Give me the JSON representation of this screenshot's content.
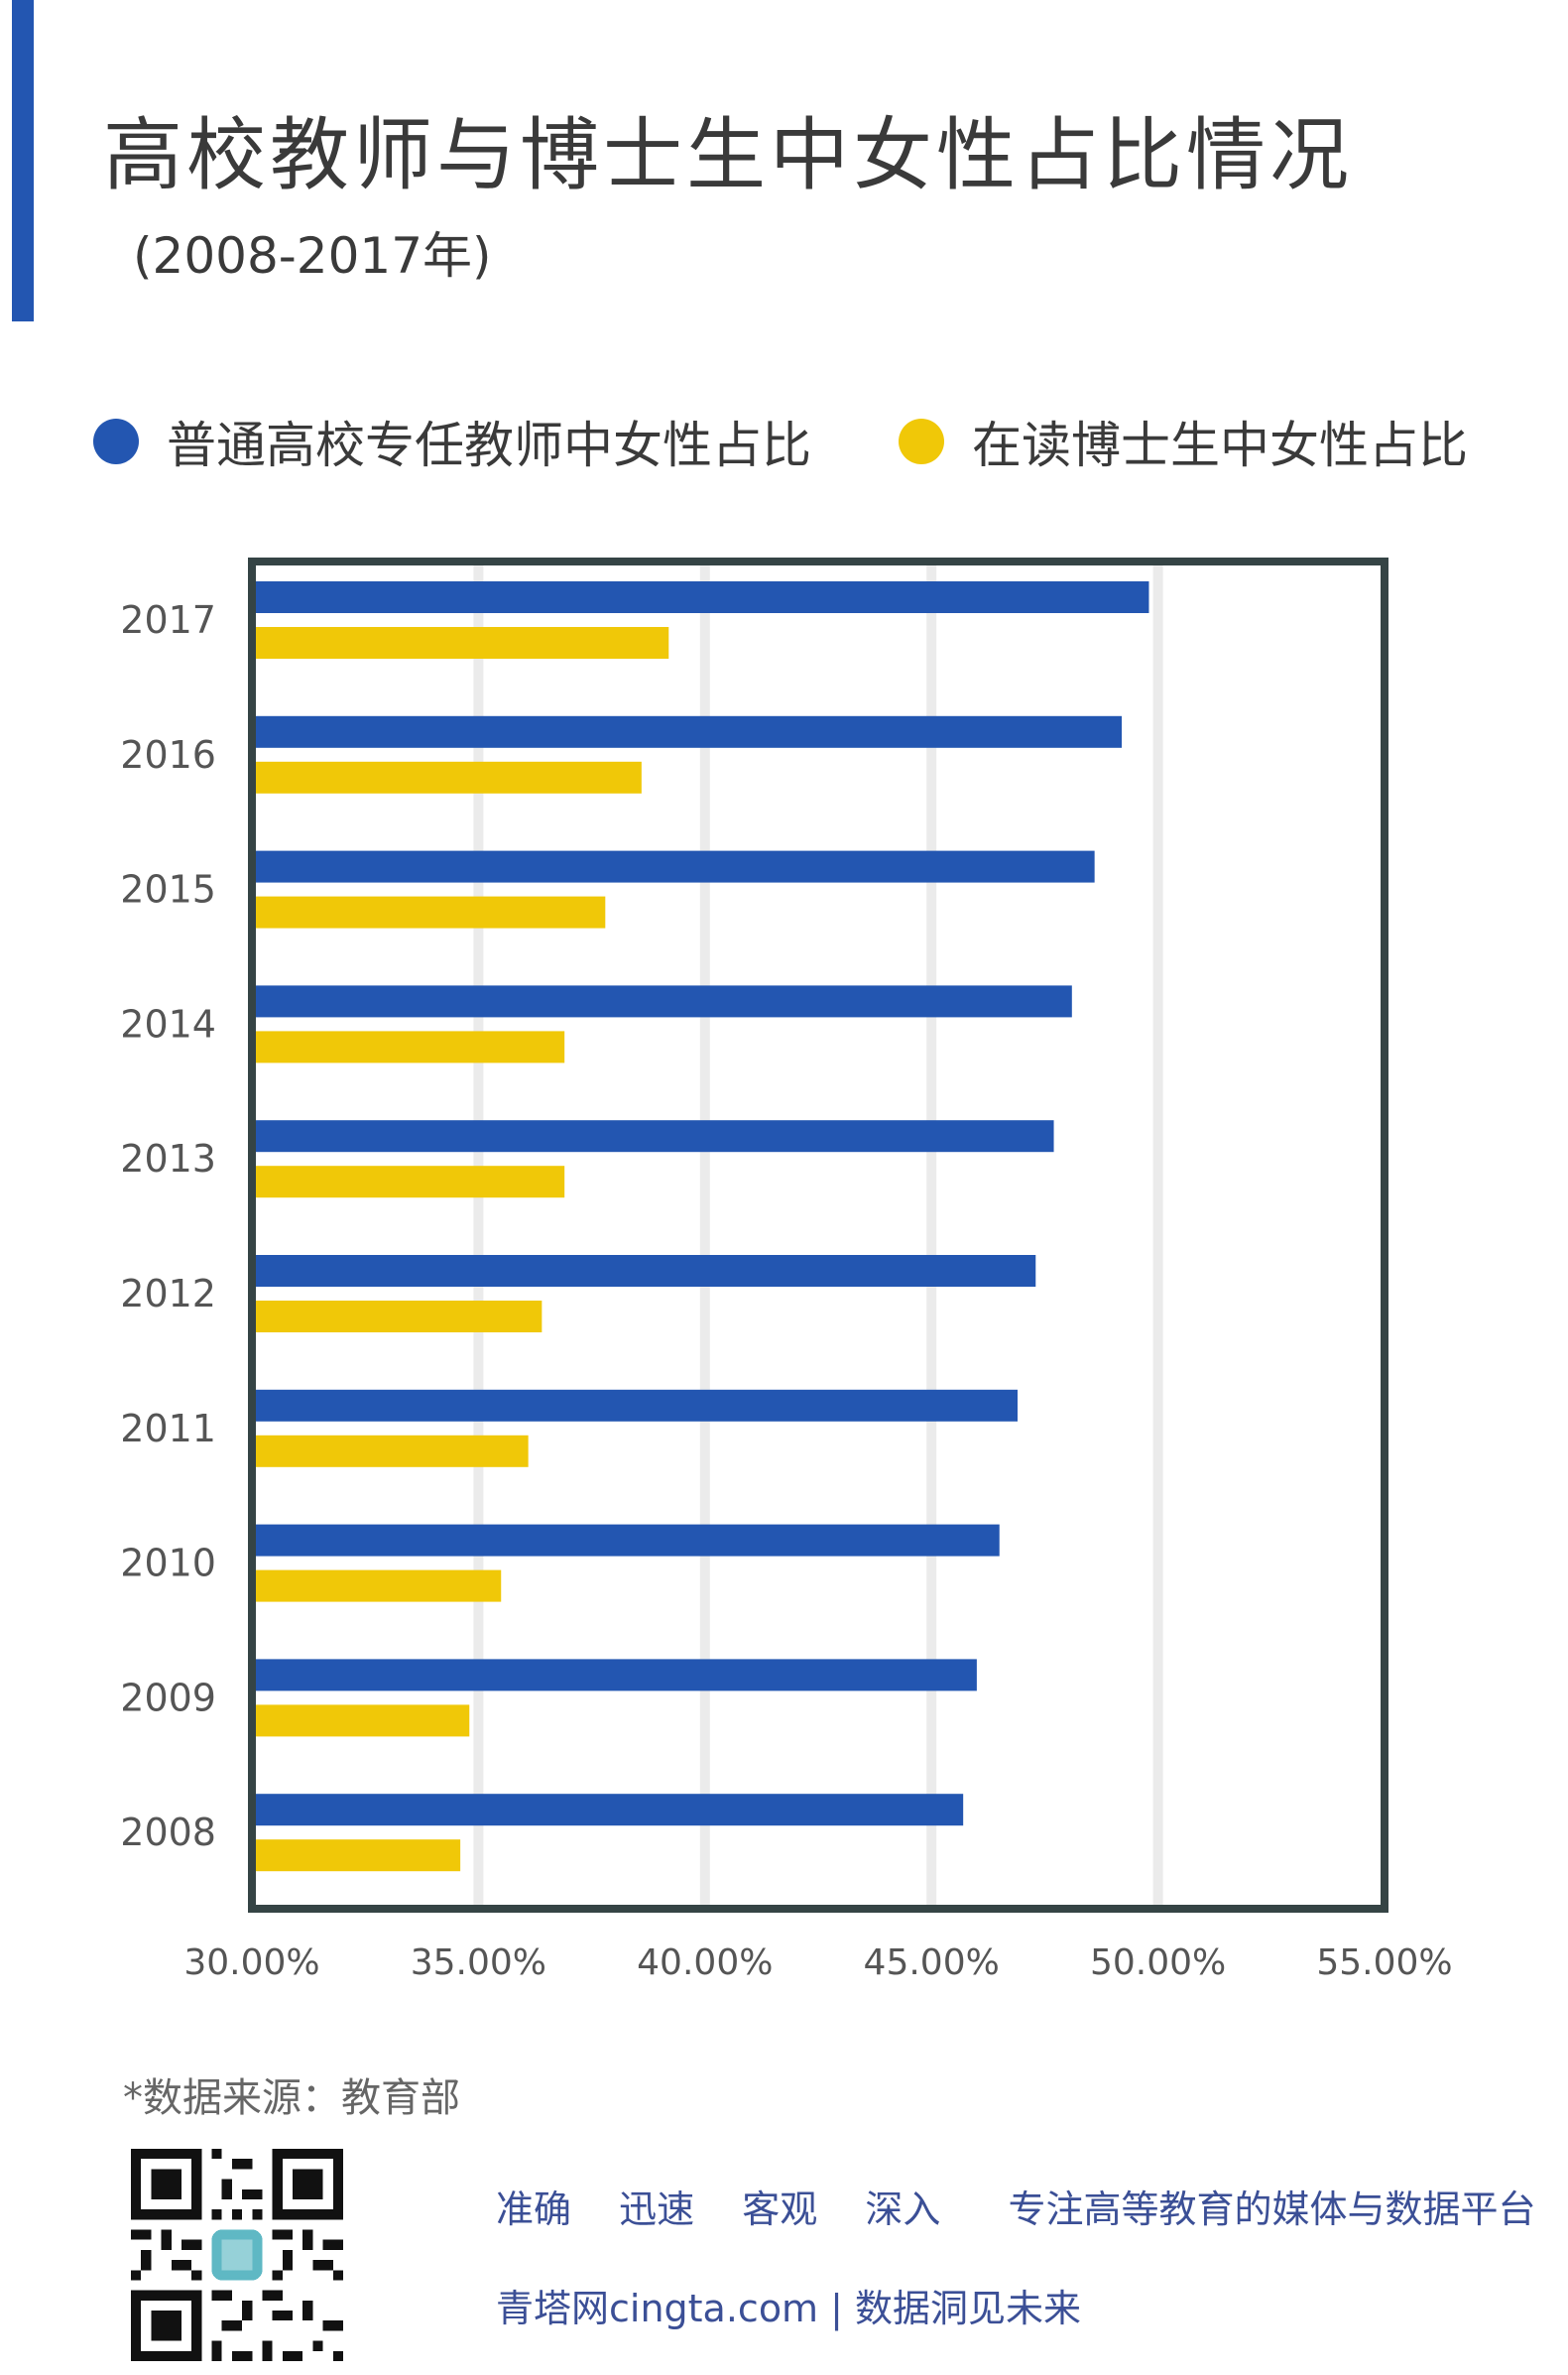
{
  "header": {
    "title": "高校教师与博士生中女性占比情况",
    "subtitle": "(2008-2017年)"
  },
  "colors": {
    "accent": "#2356b1",
    "series_blue": "#2356b1",
    "series_yellow": "#f0c808",
    "frame": "#354445",
    "grid": "#ebebeb",
    "footer_text": "#3b4f96"
  },
  "chart_data": {
    "type": "bar",
    "orientation": "horizontal",
    "categories": [
      "2017",
      "2016",
      "2015",
      "2014",
      "2013",
      "2012",
      "2011",
      "2010",
      "2009",
      "2008"
    ],
    "series": [
      {
        "name": "普通高校专任教师中女性占比",
        "color": "#2356b1",
        "values": [
          49.8,
          49.2,
          48.6,
          48.1,
          47.7,
          47.3,
          46.9,
          46.5,
          46.0,
          45.7
        ]
      },
      {
        "name": "在读博士生中女性占比",
        "color": "#f0c808",
        "values": [
          39.2,
          38.6,
          37.8,
          36.9,
          36.9,
          36.4,
          36.1,
          35.5,
          34.8,
          34.6
        ]
      }
    ],
    "xlim": [
      30,
      55
    ],
    "xticks": [
      "30.00%",
      "35.00%",
      "40.00%",
      "45.00%",
      "50.00%",
      "55.00%"
    ],
    "grid": true,
    "legend": "top"
  },
  "footer": {
    "source": "*数据来源：教育部",
    "slogan_words": [
      "准确",
      "迅速",
      "客观",
      "深入"
    ],
    "tagline": "专注高等教育的媒体与数据平台",
    "site_line": "青塔网cingta.com | 数据洞见未来"
  }
}
